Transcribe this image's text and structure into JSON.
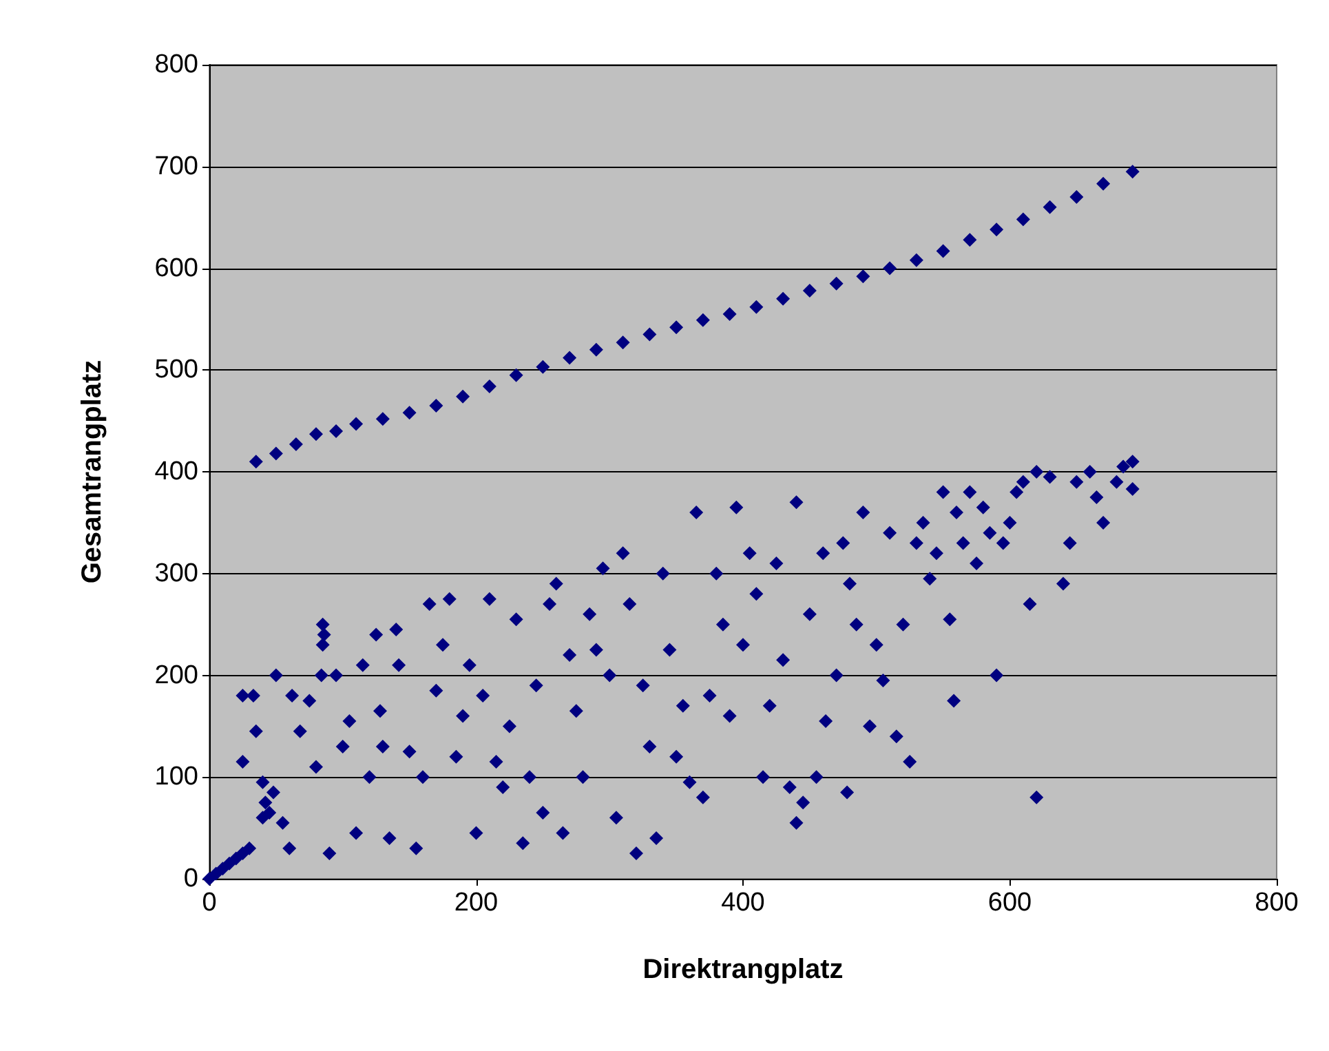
{
  "chart_data": {
    "type": "scatter",
    "xlabel": "Direktrangplatz",
    "ylabel": "Gesamtrangplatz",
    "xlim": [
      0,
      800
    ],
    "xticks": [
      0,
      200,
      400,
      600,
      800
    ],
    "ylim": [
      0,
      800
    ],
    "yticks": [
      0,
      100,
      200,
      300,
      400,
      500,
      600,
      700,
      800
    ],
    "grid": "y",
    "marker": "diamond",
    "series": [
      {
        "color": "#000080",
        "x": [
          0,
          5,
          10,
          15,
          20,
          25,
          30,
          35,
          50,
          65,
          80,
          95,
          110,
          130,
          150,
          170,
          190,
          210,
          230,
          250,
          270,
          290,
          310,
          330,
          350,
          370,
          390,
          410,
          430,
          450,
          470,
          490,
          510,
          530,
          550,
          570,
          590,
          610,
          630,
          650,
          670,
          692,
          25,
          25,
          33,
          35,
          40,
          42,
          45,
          40,
          50,
          48,
          55,
          60,
          62,
          68,
          75,
          80,
          85,
          85,
          84,
          86,
          90,
          95,
          100,
          105,
          110,
          115,
          120,
          125,
          128,
          130,
          135,
          140,
          142,
          150,
          155,
          160,
          165,
          170,
          175,
          180,
          185,
          190,
          195,
          200,
          205,
          210,
          215,
          220,
          225,
          230,
          235,
          240,
          245,
          250,
          255,
          260,
          265,
          270,
          275,
          280,
          285,
          290,
          295,
          300,
          305,
          310,
          315,
          320,
          325,
          330,
          335,
          340,
          345,
          350,
          355,
          360,
          365,
          370,
          375,
          380,
          385,
          390,
          395,
          400,
          405,
          410,
          415,
          420,
          425,
          430,
          435,
          440,
          440,
          445,
          450,
          455,
          460,
          462,
          470,
          475,
          478,
          480,
          485,
          490,
          495,
          500,
          505,
          510,
          515,
          520,
          525,
          530,
          535,
          540,
          545,
          550,
          555,
          558,
          560,
          565,
          570,
          575,
          580,
          585,
          590,
          595,
          600,
          605,
          610,
          615,
          620,
          620,
          630,
          640,
          645,
          650,
          660,
          665,
          670,
          680,
          685,
          692,
          692
        ],
        "values": [
          0,
          5,
          10,
          15,
          20,
          25,
          30,
          410,
          418,
          427,
          437,
          440,
          447,
          452,
          458,
          465,
          474,
          484,
          495,
          503,
          512,
          520,
          527,
          535,
          542,
          549,
          555,
          562,
          570,
          578,
          585,
          592,
          600,
          608,
          617,
          628,
          638,
          648,
          660,
          670,
          683,
          695,
          115,
          180,
          180,
          145,
          95,
          75,
          65,
          60,
          200,
          85,
          55,
          30,
          180,
          145,
          175,
          110,
          250,
          230,
          200,
          240,
          25,
          200,
          130,
          155,
          45,
          210,
          100,
          240,
          165,
          130,
          40,
          245,
          210,
          125,
          30,
          100,
          270,
          185,
          230,
          275,
          120,
          160,
          210,
          45,
          180,
          275,
          115,
          90,
          150,
          255,
          35,
          100,
          190,
          65,
          270,
          290,
          45,
          220,
          165,
          100,
          260,
          225,
          305,
          200,
          60,
          320,
          270,
          25,
          190,
          130,
          40,
          300,
          225,
          120,
          170,
          95,
          360,
          80,
          180,
          300,
          250,
          160,
          365,
          230,
          320,
          280,
          100,
          170,
          310,
          215,
          90,
          55,
          370,
          75,
          260,
          100,
          320,
          155,
          200,
          330,
          85,
          290,
          250,
          360,
          150,
          230,
          195,
          340,
          140,
          250,
          115,
          330,
          350,
          295,
          320,
          380,
          255,
          175,
          360,
          330,
          380,
          310,
          365,
          340,
          200,
          330,
          350,
          380,
          390,
          270,
          80,
          400,
          395,
          290,
          330,
          390,
          400,
          375,
          350,
          390,
          405,
          410,
          383
        ]
      }
    ]
  }
}
